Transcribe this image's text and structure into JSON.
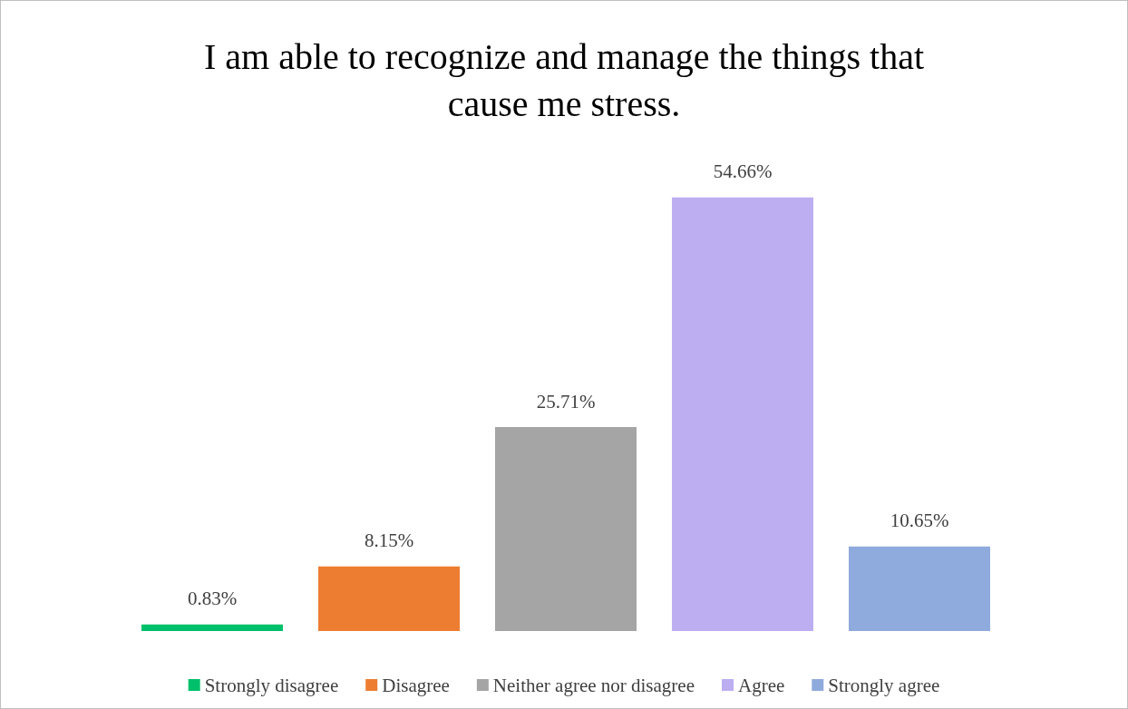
{
  "chart_data": {
    "type": "bar",
    "title": "I am able to recognize and manage the things that\ncause me stress.",
    "categories": [
      null
    ],
    "series": [
      {
        "name": "Strongly disagree",
        "color": "#00c06b",
        "values": [
          0.83
        ],
        "value_labels": [
          "0.83%"
        ]
      },
      {
        "name": "Disagree",
        "color": "#ed7d31",
        "values": [
          8.15
        ],
        "value_labels": [
          "8.15%"
        ]
      },
      {
        "name": "Neither agree nor disagree",
        "color": "#a5a5a5",
        "values": [
          25.71
        ],
        "value_labels": [
          "25.71%"
        ]
      },
      {
        "name": "Agree",
        "color": "#bdaef2",
        "values": [
          54.66
        ],
        "value_labels": [
          "54.66%"
        ]
      },
      {
        "name": "Strongly agree",
        "color": "#8faadc",
        "values": [
          10.65
        ],
        "value_labels": [
          "10.65%"
        ]
      }
    ],
    "legend": "bottom",
    "grid": false
  }
}
